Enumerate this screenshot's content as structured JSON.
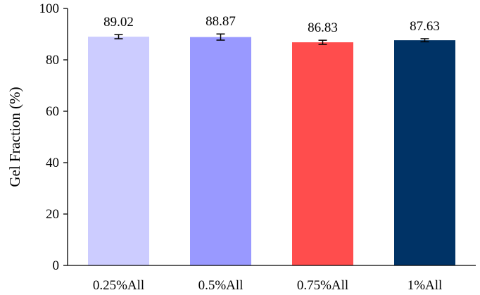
{
  "chart_data": {
    "type": "bar",
    "title": "",
    "xlabel": "",
    "ylabel": "Gel Fraction (%)",
    "ylim": [
      0,
      100
    ],
    "yticks": [
      0,
      20,
      40,
      60,
      80,
      100
    ],
    "grid": false,
    "categories": [
      "0.25%All",
      "0.5%All",
      "0.75%All",
      "1%All"
    ],
    "values": [
      89.02,
      88.87,
      86.83,
      87.63
    ],
    "value_labels": [
      "89.02",
      "88.87",
      "86.83",
      "87.63"
    ],
    "errors": [
      0.8,
      1.2,
      0.8,
      0.6
    ],
    "colors": [
      "#ccccff",
      "#9999ff",
      "#ff4d4d",
      "#003366"
    ]
  }
}
